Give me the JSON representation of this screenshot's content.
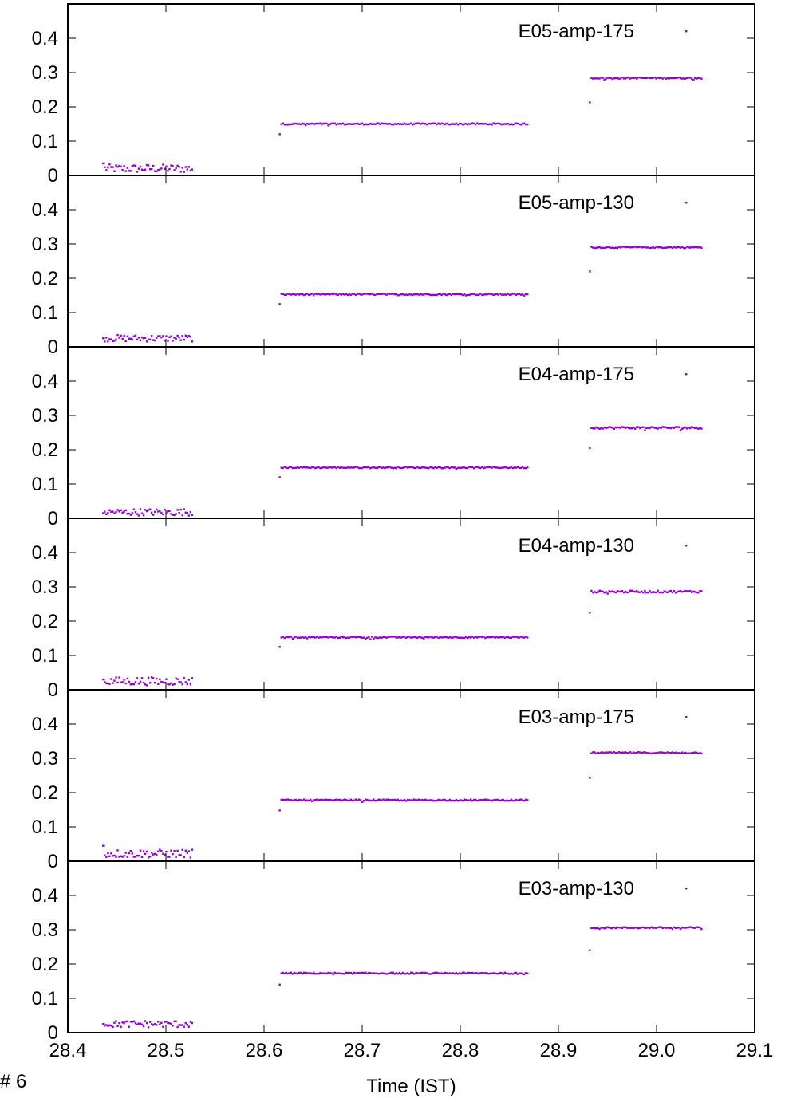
{
  "page_label": "# 6",
  "chart_data": {
    "type": "scatter",
    "xlabel": "Time (IST)",
    "xlim": [
      28.4,
      29.1
    ],
    "x_ticks": [
      "28.4",
      "28.5",
      "28.6",
      "28.7",
      "28.8",
      "28.9",
      "29.0",
      "29.1"
    ],
    "y_ticks": [
      "0",
      "0.1",
      "0.2",
      "0.3",
      "0.4"
    ],
    "ylim": [
      0,
      0.5
    ],
    "marker_color": "#9400d3",
    "legend_position": "top-right",
    "grid": false,
    "panels": [
      {
        "name": "E05-amp-175",
        "segments": [
          {
            "x_start": 28.436,
            "x_end": 28.528,
            "level": 0.02,
            "noise": 0.012,
            "first": 0.035
          },
          {
            "x_start": 28.616,
            "x_end": 28.87,
            "level": 0.15,
            "noise": 0.002,
            "first": 0.12
          },
          {
            "x_start": 28.932,
            "x_end": 29.047,
            "level": 0.284,
            "noise": 0.002,
            "first": 0.213
          }
        ]
      },
      {
        "name": "E05-amp-130",
        "segments": [
          {
            "x_start": 28.436,
            "x_end": 28.528,
            "level": 0.025,
            "noise": 0.01,
            "first": 0.025
          },
          {
            "x_start": 28.616,
            "x_end": 28.87,
            "level": 0.153,
            "noise": 0.002,
            "first": 0.125
          },
          {
            "x_start": 28.932,
            "x_end": 29.047,
            "level": 0.29,
            "noise": 0.002,
            "first": 0.22
          }
        ]
      },
      {
        "name": "E04-amp-175",
        "segments": [
          {
            "x_start": 28.436,
            "x_end": 28.528,
            "level": 0.018,
            "noise": 0.01,
            "first": 0.015
          },
          {
            "x_start": 28.616,
            "x_end": 28.87,
            "level": 0.148,
            "noise": 0.002,
            "first": 0.12
          },
          {
            "x_start": 28.932,
            "x_end": 29.047,
            "level": 0.264,
            "noise": 0.003,
            "first": 0.205
          }
        ]
      },
      {
        "name": "E04-amp-130",
        "segments": [
          {
            "x_start": 28.436,
            "x_end": 28.528,
            "level": 0.025,
            "noise": 0.012,
            "first": 0.03
          },
          {
            "x_start": 28.616,
            "x_end": 28.87,
            "level": 0.153,
            "noise": 0.002,
            "first": 0.125
          },
          {
            "x_start": 28.932,
            "x_end": 29.047,
            "level": 0.286,
            "noise": 0.003,
            "first": 0.225
          }
        ]
      },
      {
        "name": "E03-amp-175",
        "segments": [
          {
            "x_start": 28.436,
            "x_end": 28.528,
            "level": 0.022,
            "noise": 0.012,
            "first": 0.045
          },
          {
            "x_start": 28.616,
            "x_end": 28.87,
            "level": 0.178,
            "noise": 0.002,
            "first": 0.148
          },
          {
            "x_start": 28.932,
            "x_end": 29.047,
            "level": 0.316,
            "noise": 0.002,
            "first": 0.243
          }
        ]
      },
      {
        "name": "E03-amp-130",
        "segments": [
          {
            "x_start": 28.436,
            "x_end": 28.528,
            "level": 0.025,
            "noise": 0.01,
            "first": 0.025
          },
          {
            "x_start": 28.616,
            "x_end": 28.87,
            "level": 0.173,
            "noise": 0.002,
            "first": 0.14
          },
          {
            "x_start": 28.932,
            "x_end": 29.047,
            "level": 0.306,
            "noise": 0.002,
            "first": 0.24
          }
        ]
      }
    ]
  }
}
